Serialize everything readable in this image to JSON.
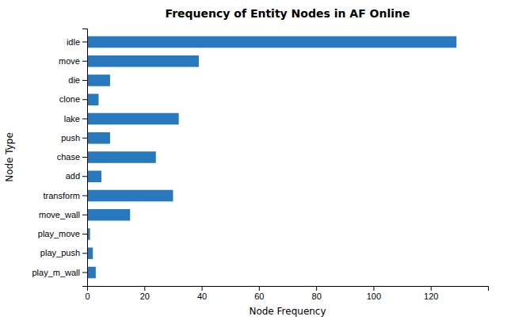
{
  "chart_data": {
    "type": "bar",
    "orientation": "horizontal",
    "title": "Frequency of Entity Nodes in AF Online",
    "xlabel": "Node Frequency",
    "ylabel": "Node Type",
    "categories": [
      "idle",
      "move",
      "die",
      "clone",
      "lake",
      "push",
      "chase",
      "add",
      "transform",
      "move_wall",
      "play_move",
      "play_push",
      "play_m_wall"
    ],
    "values": [
      129,
      39,
      8,
      4,
      32,
      8,
      24,
      5,
      30,
      15,
      1,
      2,
      3
    ],
    "color": "#2878bd",
    "xlim": [
      0,
      140
    ],
    "xticks": [
      0,
      20,
      40,
      60,
      80,
      100,
      120
    ],
    "grid": false
  }
}
